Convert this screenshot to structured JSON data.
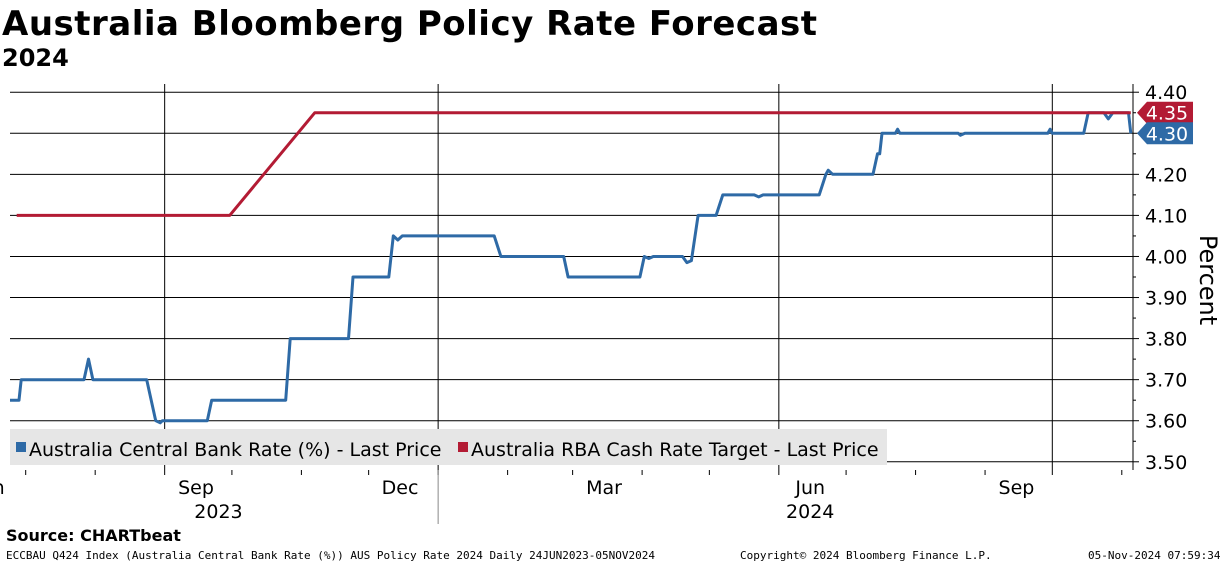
{
  "title": "Australia Bloomberg Policy Rate Forecast",
  "subtitle": "2024",
  "source": "Source:  CHARTbeat",
  "footer": {
    "left": "ECCBAU Q424 Index (Australia Central Bank Rate (%)) AUS Policy Rate 2024  Daily 24JUN2023-05NOV2024",
    "center": "Copyright© 2024 Bloomberg Finance L.P.",
    "right": "05-Nov-2024 07:59:34"
  },
  "colors": {
    "blue": "#2e6aa6",
    "red": "#b31b34",
    "grid": "#000000"
  },
  "chart_data": {
    "type": "line",
    "ylabel": "Percent",
    "ylim": [
      3.48,
      4.42
    ],
    "yticks": [
      "3.50",
      "3.60",
      "3.70",
      "3.80",
      "3.90",
      "4.00",
      "4.10",
      "4.20",
      "4.30",
      "4.40"
    ],
    "month_ticks": [
      "Jun",
      "Sep",
      "Dec",
      "Mar",
      "Jun",
      "Sep"
    ],
    "year_labels": [
      "2023",
      "2024"
    ],
    "last_values": [
      {
        "label": "4.35",
        "value": 4.35,
        "color": "#b31b34"
      },
      {
        "label": "4.30",
        "value": 4.3,
        "color": "#2e6aa6"
      }
    ],
    "series": [
      {
        "name": "Australia Central Bank Rate (%) - Last Price",
        "color": "#2e6aa6",
        "points": [
          [
            "2023-06-24",
            3.65
          ],
          [
            "2023-06-28",
            3.65
          ],
          [
            "2023-06-29",
            3.7
          ],
          [
            "2023-07-27",
            3.7
          ],
          [
            "2023-07-29",
            3.75
          ],
          [
            "2023-07-31",
            3.7
          ],
          [
            "2023-08-24",
            3.7
          ],
          [
            "2023-08-28",
            3.6
          ],
          [
            "2023-08-30",
            3.595
          ],
          [
            "2023-08-31",
            3.6
          ],
          [
            "2023-09-20",
            3.6
          ],
          [
            "2023-09-22",
            3.65
          ],
          [
            "2023-10-25",
            3.65
          ],
          [
            "2023-10-27",
            3.8
          ],
          [
            "2023-11-22",
            3.8
          ],
          [
            "2023-11-24",
            3.95
          ],
          [
            "2023-12-10",
            3.95
          ],
          [
            "2023-12-12",
            4.05
          ],
          [
            "2023-12-14",
            4.04
          ],
          [
            "2023-12-16",
            4.05
          ],
          [
            "2024-01-26",
            4.05
          ],
          [
            "2024-01-29",
            4.0
          ],
          [
            "2024-01-31",
            4.0
          ],
          [
            "2024-02-26",
            4.0
          ],
          [
            "2024-02-28",
            3.95
          ],
          [
            "2024-03-31",
            3.95
          ],
          [
            "2024-04-02",
            4.0
          ],
          [
            "2024-04-04",
            3.995
          ],
          [
            "2024-04-06",
            4.0
          ],
          [
            "2024-04-19",
            4.0
          ],
          [
            "2024-04-21",
            3.985
          ],
          [
            "2024-04-23",
            3.99
          ],
          [
            "2024-04-26",
            4.1
          ],
          [
            "2024-05-04",
            4.1
          ],
          [
            "2024-05-07",
            4.15
          ],
          [
            "2024-05-21",
            4.15
          ],
          [
            "2024-05-23",
            4.145
          ],
          [
            "2024-05-25",
            4.15
          ],
          [
            "2024-06-19",
            4.15
          ],
          [
            "2024-06-22",
            4.2
          ],
          [
            "2024-06-23",
            4.21
          ],
          [
            "2024-06-25",
            4.2
          ],
          [
            "2024-07-13",
            4.2
          ],
          [
            "2024-07-15",
            4.25
          ],
          [
            "2024-07-16",
            4.25
          ],
          [
            "2024-07-17",
            4.3
          ],
          [
            "2024-07-23",
            4.3
          ],
          [
            "2024-07-24",
            4.31
          ],
          [
            "2024-07-25",
            4.3
          ],
          [
            "2024-08-20",
            4.3
          ],
          [
            "2024-08-21",
            4.295
          ],
          [
            "2024-08-23",
            4.3
          ],
          [
            "2024-09-29",
            4.3
          ],
          [
            "2024-09-30",
            4.31
          ],
          [
            "2024-10-01",
            4.3
          ],
          [
            "2024-10-15",
            4.3
          ],
          [
            "2024-10-17",
            4.35
          ],
          [
            "2024-10-24",
            4.35
          ],
          [
            "2024-10-26",
            4.335
          ],
          [
            "2024-10-28",
            4.35
          ],
          [
            "2024-11-04",
            4.35
          ],
          [
            "2024-11-05",
            4.3
          ]
        ]
      },
      {
        "name": "Australia RBA Cash Rate Target - Last Price",
        "color": "#b31b34",
        "points": [
          [
            "2023-06-27",
            4.1
          ],
          [
            "2023-09-30",
            4.1
          ],
          [
            "2023-11-07",
            4.35
          ],
          [
            "2024-11-05",
            4.35
          ]
        ]
      }
    ]
  }
}
